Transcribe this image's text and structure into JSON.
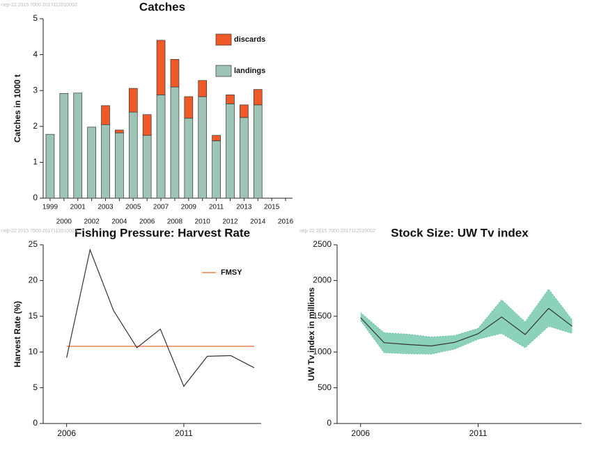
{
  "chart_data": [
    {
      "type": "stacked-bar",
      "title": "Catches",
      "note": "nep-22 2015 7000 2017112010002",
      "ylabel": "Catches in 1000 t",
      "categories": [
        "1999",
        "2000",
        "2001",
        "2002",
        "2003",
        "2004",
        "2005",
        "2006",
        "2007",
        "2008",
        "2009",
        "2010",
        "2011",
        "2012",
        "2013",
        "2014",
        "2015",
        "2016"
      ],
      "series": [
        {
          "name": "landings",
          "color": "#9ec4b6",
          "values": [
            1.78,
            2.92,
            2.93,
            1.98,
            2.05,
            1.82,
            2.4,
            1.75,
            2.88,
            3.1,
            2.23,
            2.83,
            1.6,
            2.63,
            2.25,
            2.6,
            null,
            null
          ]
        },
        {
          "name": "discards",
          "color": "#f05a28",
          "values": [
            0,
            0,
            0,
            0,
            0.53,
            0.08,
            0.66,
            0.58,
            1.52,
            0.77,
            0.6,
            0.45,
            0.15,
            0.25,
            0.35,
            0.43,
            null,
            null
          ]
        }
      ],
      "ylim": [
        0,
        5
      ],
      "yticks": [
        0,
        1,
        2,
        3,
        4,
        5
      ],
      "legend": "upper right"
    },
    {
      "type": "line",
      "title": "Fishing Pressure: Harvest Rate",
      "note": "nep-22 2015 7000 2017112010002",
      "ylabel": "Harvest Rate (%)",
      "x": [
        2006,
        2007,
        2008,
        2009,
        2010,
        2011,
        2012,
        2013,
        2014
      ],
      "values": [
        9.2,
        24.3,
        15.8,
        10.6,
        13.2,
        5.2,
        9.4,
        9.5,
        7.8
      ],
      "color": "#333333",
      "reference_line": {
        "name": "FMSY",
        "value": 10.8,
        "color": "#f0a080"
      },
      "xlim": [
        2005,
        2014.3
      ],
      "xticks": [
        2006,
        2011
      ],
      "ylim": [
        0,
        25
      ],
      "yticks": [
        0,
        5,
        10,
        15,
        20,
        25
      ],
      "legend": "upper right"
    },
    {
      "type": "band-line",
      "title": "Stock Size: UW Tv index",
      "note": "nep-22 2015 7000 2017112010002",
      "ylabel": "UW Tv index in millions",
      "x": [
        2006,
        2007,
        2008,
        2009,
        2010,
        2011,
        2012,
        2013,
        2014,
        2015
      ],
      "values": [
        1480,
        1130,
        1105,
        1085,
        1135,
        1255,
        1490,
        1245,
        1610,
        1360
      ],
      "upper": [
        1550,
        1270,
        1250,
        1210,
        1230,
        1330,
        1730,
        1420,
        1880,
        1450
      ],
      "lower": [
        1440,
        990,
        975,
        970,
        1040,
        1180,
        1260,
        1060,
        1360,
        1260
      ],
      "color": "#333333",
      "band_color": "#66c2a5",
      "xlim": [
        2005,
        2015.4
      ],
      "xticks": [
        2006,
        2011
      ],
      "ylim": [
        0,
        2500
      ],
      "yticks": [
        0,
        500,
        1000,
        1500,
        2000,
        2500
      ]
    }
  ]
}
